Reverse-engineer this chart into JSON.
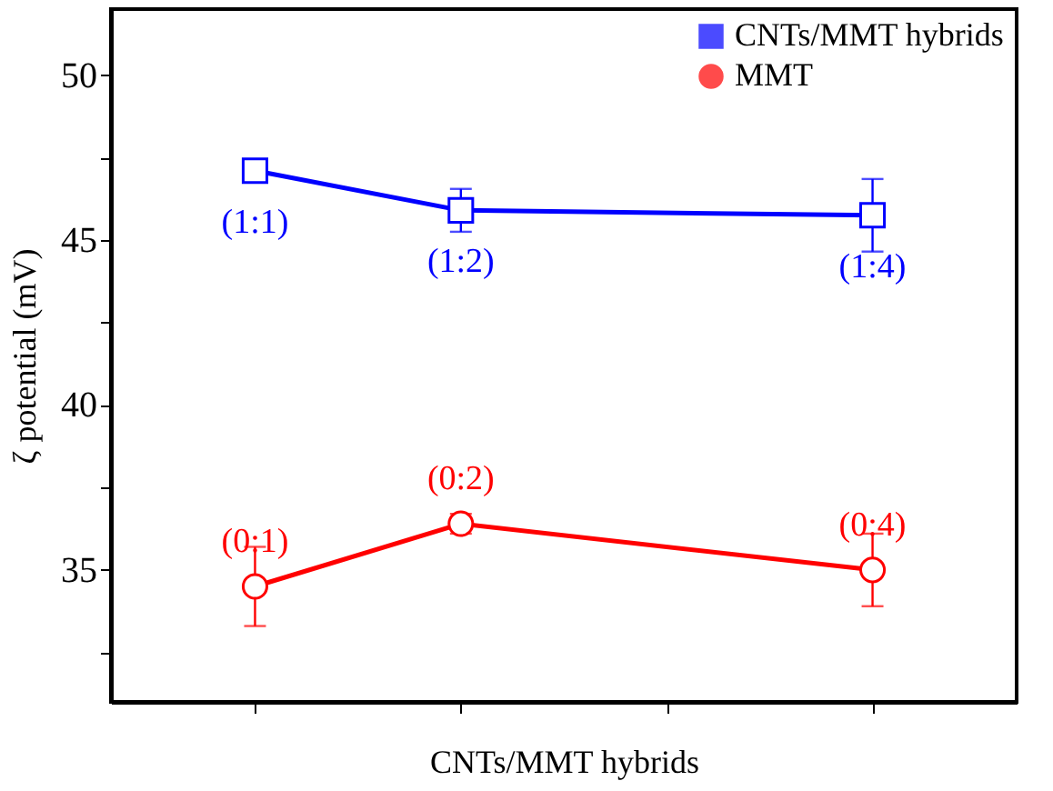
{
  "chart_data": {
    "type": "line",
    "xlabel": "CNTs/MMT hybrids",
    "ylabel": "ζ potential (mV)",
    "categories": [
      null,
      null,
      null,
      null
    ],
    "ylim": [
      31,
      52
    ],
    "yticks": [
      {
        "value": 32.5,
        "label": null
      },
      35,
      {
        "value": 37.5,
        "label": null
      },
      40,
      {
        "value": 42.5,
        "label": null
      },
      45,
      {
        "value": 47.5,
        "label": null
      },
      50
    ],
    "tick_labels": "y",
    "grid": false,
    "legend": "top right",
    "line_style": "solid",
    "series": [
      {
        "name": "CNTs/MMT hybrids",
        "color": "#0000ff",
        "marker": "square",
        "values": [
          47.1,
          45.9,
          null,
          45.75
        ],
        "errors": [
          null,
          0.65,
          null,
          1.1
        ],
        "value_labels": [
          "(1:1)",
          "(1:2)",
          null,
          "(1:4)"
        ]
      },
      {
        "name": "MMT",
        "color": "#ff0000",
        "marker": "circle",
        "values": [
          34.5,
          36.4,
          null,
          35.0
        ],
        "errors": [
          1.2,
          0.3,
          null,
          1.1
        ],
        "value_labels": [
          "(0:1)",
          "(0:2)",
          null,
          "(0:4)"
        ]
      }
    ]
  }
}
